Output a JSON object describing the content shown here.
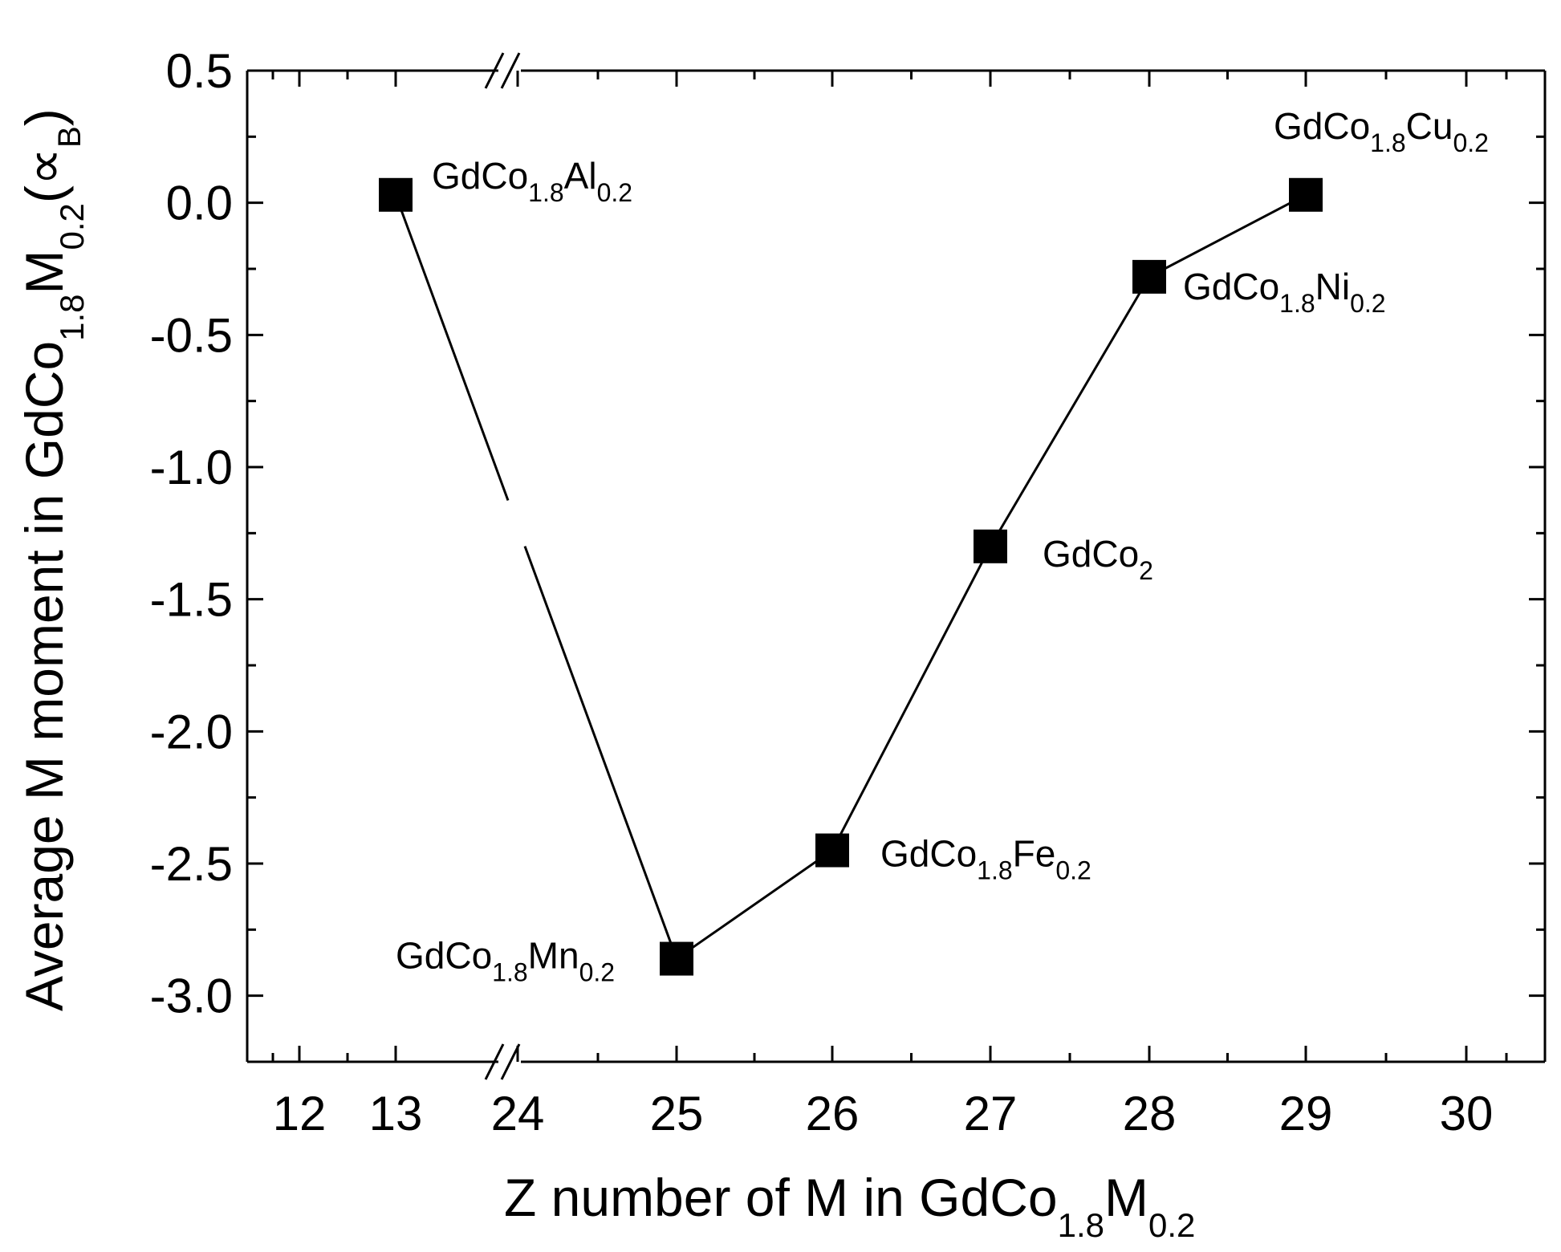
{
  "chart_data": {
    "type": "line",
    "xlabel": {
      "text": "Z number of M in GdCo",
      "sub1": "1.8",
      "mid": "M",
      "sub2": "0.2"
    },
    "ylabel": {
      "text": "Average M moment in GdCo",
      "sub1": "1.8",
      "mid": "M",
      "sub2": "0.2",
      "open": "(",
      "unit": "∝",
      "unit_sub": "B",
      "close": ")"
    },
    "x_ticks": [
      "12",
      "13",
      "24",
      "25",
      "26",
      "27",
      "28",
      "29",
      "30"
    ],
    "y_ticks": [
      "0.5",
      "0.0",
      "-0.5",
      "-1.0",
      "-1.5",
      "-2.0",
      "-2.5",
      "-3.0"
    ],
    "ylim": [
      -3.25,
      0.5
    ],
    "x_axis_break": "between 13 and 24",
    "grid": false,
    "legend": "none",
    "marker": "filled-square",
    "series": [
      {
        "points": [
          {
            "x": 13,
            "y": 0.03,
            "label": {
              "base": "GdCo",
              "s1": "1.8",
              "el": "Al",
              "s2": "0.2"
            }
          },
          {
            "x": 25,
            "y": -2.86,
            "label": {
              "base": "GdCo",
              "s1": "1.8",
              "el": "Mn",
              "s2": "0.2"
            }
          },
          {
            "x": 26,
            "y": -2.45,
            "label": {
              "base": "GdCo",
              "s1": "1.8",
              "el": "Fe",
              "s2": "0.2"
            }
          },
          {
            "x": 27,
            "y": -1.3,
            "label": {
              "base": "GdCo",
              "s1": "2",
              "el": "",
              "s2": ""
            }
          },
          {
            "x": 28,
            "y": -0.28,
            "label": {
              "base": "GdCo",
              "s1": "1.8",
              "el": "Ni",
              "s2": "0.2"
            }
          },
          {
            "x": 29,
            "y": 0.03,
            "label": {
              "base": "GdCo",
              "s1": "1.8",
              "el": "Cu",
              "s2": "0.2"
            }
          }
        ]
      }
    ],
    "colors": {
      "line": "#000000",
      "marker": "#000000",
      "background": "#ffffff"
    }
  }
}
